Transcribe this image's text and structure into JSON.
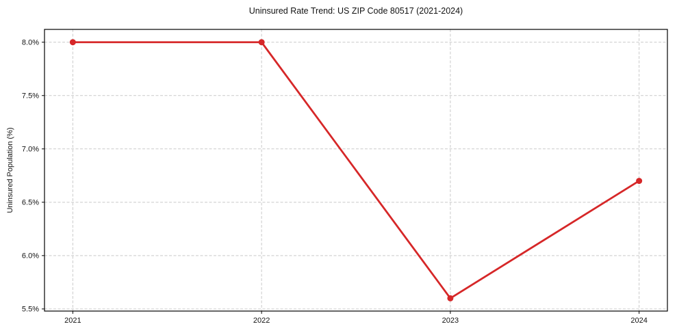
{
  "figure": {
    "title": "Uninsured Rate Trend: US ZIP Code 80517 (2021-2024)"
  },
  "chart_data": {
    "type": "line",
    "title": "Uninsured Rate Trend: US ZIP Code 80517 (2021-2024)",
    "xlabel": "",
    "ylabel": "Uninsured Population (%)",
    "categories": [
      2021,
      2022,
      2023,
      2024
    ],
    "series": [
      {
        "name": "Uninsured Population (%)",
        "values": [
          8.0,
          8.0,
          5.6,
          6.7
        ],
        "color": "#d62728",
        "marker": "circle"
      }
    ],
    "xlim": [
      2020.85,
      2024.15
    ],
    "ylim": [
      5.48,
      8.12
    ],
    "xticks": {
      "values": [
        2021,
        2022,
        2023,
        2024
      ],
      "labels": [
        "2021",
        "2022",
        "2023",
        "2024"
      ]
    },
    "yticks": {
      "values": [
        5.5,
        6.0,
        6.5,
        7.0,
        7.5,
        8.0
      ],
      "labels": [
        "5.5%",
        "6.0%",
        "6.5%",
        "7.0%",
        "7.5%",
        "8.0%"
      ]
    },
    "grid": true,
    "grid_style": "dashed",
    "legend": "none",
    "colors": {
      "line": "#d62728",
      "grid": "#c9c9c9",
      "spine": "#000000",
      "text": "#111111",
      "background": "#ffffff"
    }
  }
}
